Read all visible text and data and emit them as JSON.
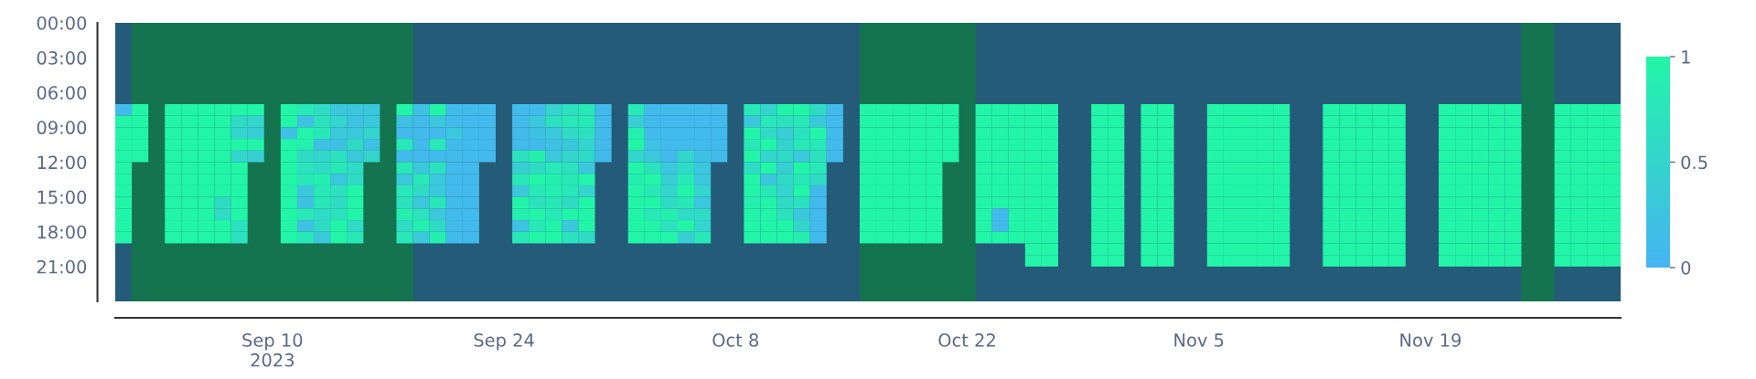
{
  "chart_data": {
    "type": "heatmap",
    "x": [
      "2023-09-01",
      "2023-09-02",
      "2023-09-03",
      "2023-09-04",
      "2023-09-05",
      "2023-09-06",
      "2023-09-07",
      "2023-09-08",
      "2023-09-09",
      "2023-09-10",
      "2023-09-11",
      "2023-09-12",
      "2023-09-13",
      "2023-09-14",
      "2023-09-15",
      "2023-09-16",
      "2023-09-17",
      "2023-09-18",
      "2023-09-19",
      "2023-09-20",
      "2023-09-21",
      "2023-09-22",
      "2023-09-23",
      "2023-09-24",
      "2023-09-25",
      "2023-09-26",
      "2023-09-27",
      "2023-09-28",
      "2023-09-29",
      "2023-09-30",
      "2023-10-01",
      "2023-10-02",
      "2023-10-03",
      "2023-10-04",
      "2023-10-05",
      "2023-10-06",
      "2023-10-07",
      "2023-10-08",
      "2023-10-09",
      "2023-10-10",
      "2023-10-11",
      "2023-10-12",
      "2023-10-13",
      "2023-10-14",
      "2023-10-15",
      "2023-10-16",
      "2023-10-17",
      "2023-10-18",
      "2023-10-19",
      "2023-10-20",
      "2023-10-21",
      "2023-10-22",
      "2023-10-23",
      "2023-10-24",
      "2023-10-25",
      "2023-10-26",
      "2023-10-27",
      "2023-10-28",
      "2023-10-29",
      "2023-10-30",
      "2023-10-31",
      "2023-11-01",
      "2023-11-02",
      "2023-11-03",
      "2023-11-04",
      "2023-11-05",
      "2023-11-06",
      "2023-11-07",
      "2023-11-08",
      "2023-11-09",
      "2023-11-10",
      "2023-11-11",
      "2023-11-12",
      "2023-11-13",
      "2023-11-14",
      "2023-11-15",
      "2023-11-16",
      "2023-11-17",
      "2023-11-18",
      "2023-11-19",
      "2023-11-20",
      "2023-11-21",
      "2023-11-22",
      "2023-11-23",
      "2023-11-24",
      "2023-11-25",
      "2023-11-26",
      "2023-11-27",
      "2023-11-28",
      "2023-11-29",
      "2023-11-30"
    ],
    "xlim": [
      "2023-08-31T12:00",
      "2023-11-30T12:00"
    ],
    "xticks": [
      {
        "value": "2023-09-10",
        "label": "Sep 10\n2023"
      },
      {
        "value": "2023-09-24",
        "label": "Sep 24"
      },
      {
        "value": "2023-10-08",
        "label": "Oct 8"
      },
      {
        "value": "2023-10-22",
        "label": "Oct 22"
      },
      {
        "value": "2023-11-05",
        "label": "Nov 5"
      },
      {
        "value": "2023-11-19",
        "label": "Nov 19"
      }
    ],
    "ylim": [
      24,
      0
    ],
    "y": [
      7.5,
      8.5,
      9.5,
      10.5,
      11.5,
      12.5,
      13.5,
      14.5,
      15.5,
      16.5,
      17.5,
      18.5,
      19.5,
      20.5
    ],
    "yticks": [
      {
        "value": 0,
        "label": "00:00"
      },
      {
        "value": 3,
        "label": "03:00"
      },
      {
        "value": 6,
        "label": "06:00"
      },
      {
        "value": 9,
        "label": "09:00"
      },
      {
        "value": 12,
        "label": "12:00"
      },
      {
        "value": 15,
        "label": "15:00"
      },
      {
        "value": 18,
        "label": "18:00"
      },
      {
        "value": 21,
        "label": "21:00"
      }
    ],
    "clim": [
      0,
      1
    ],
    "cticks": [
      0,
      0.5,
      1
    ],
    "bands": [
      {
        "axis": "x",
        "from": "2023-09-01T12:00",
        "to": "2023-09-18T12:00",
        "color": "#14744f"
      },
      {
        "axis": "x",
        "from": "2023-10-15T12:00",
        "to": "2023-10-22T12:00",
        "color": "#14744f"
      },
      {
        "axis": "x",
        "from": "2023-11-24T12:00",
        "to": "2023-11-26T12:00",
        "color": "#14744f"
      }
    ],
    "cells": [
      [
        0.1,
        1,
        null,
        1,
        1,
        1,
        1,
        1,
        1,
        null,
        1,
        0.8,
        0.6,
        0.3,
        0.3,
        0.3,
        null,
        1,
        0.2,
        1,
        0.1,
        0.1,
        0.1,
        null,
        0.1,
        0.1,
        0.5,
        0.7,
        0.8,
        0.1,
        null,
        0.8,
        0.1,
        0.1,
        0.1,
        0.1,
        0.1,
        null,
        0.8,
        0.5,
        1,
        1,
        0.6,
        0.1,
        null,
        1,
        1,
        1,
        1,
        1,
        1,
        null,
        1,
        1,
        1,
        1,
        1,
        null,
        null,
        1,
        1,
        null,
        1,
        1,
        null,
        null,
        1,
        1,
        1,
        1,
        1,
        null,
        null,
        1,
        1,
        1,
        1,
        1,
        null,
        null,
        1,
        1,
        1,
        1,
        1,
        null,
        null,
        1,
        1,
        1,
        1
      ],
      [
        1,
        1,
        null,
        1,
        1,
        1,
        1,
        0.6,
        0.5,
        null,
        1,
        0.2,
        0.7,
        0.5,
        0.2,
        0.3,
        null,
        0.2,
        0.1,
        0.3,
        0.1,
        0.1,
        0.1,
        null,
        0.1,
        0.3,
        0.7,
        0.8,
        0.8,
        0.1,
        null,
        0.4,
        0.1,
        0.1,
        0.1,
        0.1,
        0.1,
        null,
        0.3,
        0.8,
        0.7,
        0.8,
        0.3,
        0.1,
        null,
        1,
        1,
        1,
        1,
        1,
        1,
        null,
        1,
        1,
        1,
        1,
        1,
        null,
        null,
        1,
        1,
        null,
        1,
        1,
        null,
        null,
        1,
        1,
        1,
        1,
        1,
        null,
        null,
        1,
        1,
        1,
        1,
        1,
        null,
        null,
        1,
        1,
        1,
        1,
        1,
        null,
        null,
        1,
        1,
        1,
        1
      ],
      [
        1,
        1,
        null,
        1,
        1,
        1,
        1,
        0.5,
        0.4,
        null,
        0.2,
        1,
        0.8,
        0.3,
        0.3,
        0.5,
        null,
        0.1,
        0.1,
        0.1,
        0.3,
        0.1,
        0.1,
        null,
        0.1,
        0.2,
        0.3,
        0.6,
        0.7,
        0.1,
        null,
        0.9,
        0.1,
        0.1,
        0.1,
        0.1,
        0.1,
        null,
        1,
        0.6,
        0.4,
        0.7,
        1,
        0.1,
        null,
        1,
        1,
        1,
        1,
        1,
        1,
        null,
        1,
        1,
        1,
        1,
        1,
        null,
        null,
        1,
        1,
        null,
        1,
        1,
        null,
        null,
        1,
        1,
        1,
        1,
        1,
        null,
        null,
        1,
        1,
        1,
        1,
        1,
        null,
        null,
        1,
        1,
        1,
        1,
        1,
        null,
        null,
        1,
        1,
        1,
        1
      ],
      [
        1,
        1,
        null,
        1,
        1,
        1,
        1,
        1,
        1,
        null,
        1,
        0.9,
        0.2,
        0.2,
        0.6,
        0.2,
        null,
        0.8,
        0.1,
        0.8,
        0.1,
        0.1,
        0.1,
        null,
        0.1,
        0.1,
        0.2,
        0.3,
        0.5,
        0.1,
        null,
        1,
        0.2,
        0.1,
        0.1,
        0.1,
        0.1,
        null,
        0.8,
        1,
        0.5,
        0.8,
        0.8,
        0.1,
        null,
        1,
        1,
        1,
        1,
        1,
        1,
        null,
        1,
        1,
        1,
        1,
        1,
        null,
        null,
        1,
        1,
        null,
        1,
        1,
        null,
        null,
        1,
        1,
        1,
        1,
        1,
        null,
        null,
        1,
        1,
        1,
        1,
        1,
        null,
        null,
        1,
        1,
        1,
        1,
        1,
        null,
        null,
        1,
        1,
        1,
        1
      ],
      [
        1,
        1,
        null,
        1,
        1,
        1,
        1,
        0.5,
        0.4,
        null,
        1,
        0.6,
        0.5,
        0.7,
        0.3,
        0.5,
        null,
        0.1,
        0.1,
        0.1,
        0.1,
        0.1,
        0.1,
        null,
        0.7,
        0.9,
        0.3,
        0.5,
        0.6,
        0.1,
        null,
        0.5,
        0.3,
        0.1,
        0.5,
        0.2,
        0.1,
        null,
        1,
        0.5,
        0.6,
        0.3,
        0.7,
        0.1,
        null,
        1,
        1,
        1,
        1,
        1,
        1,
        null,
        1,
        1,
        1,
        1,
        1,
        null,
        null,
        1,
        1,
        null,
        1,
        1,
        null,
        null,
        1,
        1,
        1,
        1,
        1,
        null,
        null,
        1,
        1,
        1,
        1,
        1,
        null,
        null,
        1,
        1,
        1,
        1,
        1,
        null,
        null,
        1,
        1,
        1,
        1
      ],
      [
        1,
        null,
        null,
        1,
        1,
        1,
        1,
        1,
        null,
        null,
        1,
        0.7,
        0.6,
        0.8,
        0.6,
        null,
        null,
        0.8,
        0.3,
        0.7,
        0.1,
        0.1,
        null,
        null,
        0.4,
        0.6,
        0.8,
        0.7,
        0.3,
        null,
        null,
        1,
        0.7,
        0.3,
        0.6,
        0.3,
        null,
        null,
        0.6,
        1,
        0.4,
        1,
        0.8,
        null,
        null,
        1,
        1,
        1,
        1,
        1,
        null,
        null,
        1,
        1,
        1,
        1,
        1,
        null,
        null,
        1,
        1,
        null,
        1,
        1,
        null,
        null,
        1,
        1,
        1,
        1,
        1,
        null,
        null,
        1,
        1,
        1,
        1,
        1,
        null,
        null,
        1,
        1,
        1,
        1,
        1,
        null,
        null,
        1,
        1,
        1,
        1
      ],
      [
        1,
        null,
        null,
        1,
        1,
        1,
        1,
        1,
        null,
        null,
        1,
        0.8,
        0.9,
        0.3,
        0.6,
        null,
        null,
        0.3,
        0.8,
        0.3,
        0.1,
        0.1,
        null,
        null,
        0.8,
        1,
        0.9,
        0.8,
        1,
        null,
        null,
        0.9,
        1,
        0.4,
        0.8,
        0.3,
        null,
        null,
        1,
        0.3,
        0.6,
        0.8,
        0.6,
        null,
        null,
        1,
        1,
        1,
        1,
        1,
        null,
        null,
        1,
        1,
        1,
        1,
        1,
        null,
        null,
        1,
        1,
        null,
        1,
        1,
        null,
        null,
        1,
        1,
        1,
        1,
        1,
        null,
        null,
        1,
        1,
        1,
        1,
        1,
        null,
        null,
        1,
        1,
        1,
        1,
        1,
        null,
        null,
        1,
        1,
        1,
        1
      ],
      [
        1,
        null,
        null,
        1,
        1,
        1,
        1,
        1,
        null,
        null,
        1,
        0.3,
        0.8,
        0.7,
        1,
        null,
        null,
        0.8,
        0.6,
        0.3,
        0.1,
        0.1,
        null,
        null,
        0.3,
        0.8,
        0.9,
        0.8,
        0.5,
        null,
        null,
        1,
        0.8,
        0.5,
        1,
        0.5,
        null,
        null,
        1,
        0.8,
        0.5,
        1,
        0.1,
        null,
        null,
        1,
        1,
        1,
        1,
        1,
        null,
        null,
        1,
        1,
        1,
        1,
        1,
        null,
        null,
        1,
        1,
        null,
        1,
        1,
        null,
        null,
        1,
        1,
        1,
        1,
        1,
        null,
        null,
        1,
        1,
        1,
        1,
        1,
        null,
        null,
        1,
        1,
        1,
        1,
        1,
        null,
        null,
        1,
        1,
        1,
        1
      ],
      [
        1,
        null,
        null,
        1,
        1,
        1,
        0.6,
        1,
        null,
        null,
        1,
        0.2,
        0.8,
        0.6,
        1,
        null,
        null,
        0.7,
        0.3,
        0.8,
        0.1,
        0.1,
        null,
        null,
        1,
        0.7,
        0.8,
        0.6,
        1,
        null,
        null,
        1,
        1,
        0.6,
        0.8,
        0.3,
        null,
        null,
        0.9,
        1,
        0.6,
        0.7,
        0.1,
        null,
        null,
        1,
        1,
        1,
        1,
        1,
        null,
        null,
        1,
        1,
        1,
        1,
        1,
        null,
        null,
        1,
        1,
        null,
        1,
        1,
        null,
        null,
        1,
        1,
        1,
        1,
        1,
        null,
        null,
        1,
        1,
        1,
        1,
        1,
        null,
        null,
        1,
        1,
        1,
        1,
        1,
        null,
        null,
        1,
        1,
        1,
        1
      ],
      [
        1,
        null,
        null,
        1,
        1,
        1,
        0.6,
        1,
        null,
        null,
        1,
        0.8,
        0.6,
        0.7,
        1,
        null,
        null,
        0.9,
        0.7,
        0.3,
        0.1,
        0.1,
        null,
        null,
        0.9,
        1,
        0.8,
        1,
        1,
        null,
        null,
        1,
        0.8,
        0.9,
        0.6,
        0.6,
        null,
        null,
        1,
        1,
        0.7,
        0.3,
        0.1,
        null,
        null,
        1,
        1,
        1,
        1,
        1,
        null,
        null,
        1,
        0.1,
        1,
        1,
        1,
        null,
        null,
        1,
        1,
        null,
        1,
        1,
        null,
        null,
        1,
        1,
        1,
        1,
        1,
        null,
        null,
        1,
        1,
        1,
        1,
        1,
        null,
        null,
        1,
        1,
        1,
        1,
        1,
        null,
        null,
        1,
        1,
        1,
        1
      ],
      [
        1,
        null,
        null,
        1,
        1,
        1,
        1,
        0.7,
        null,
        null,
        1,
        0.2,
        0.6,
        1,
        0.6,
        null,
        null,
        0.6,
        0.9,
        0.6,
        0.1,
        0.1,
        null,
        null,
        0.2,
        0.8,
        1,
        0.3,
        1,
        null,
        null,
        1,
        1,
        0.7,
        1,
        0.5,
        null,
        null,
        1,
        1,
        1,
        0.5,
        0.1,
        null,
        null,
        1,
        1,
        1,
        1,
        1,
        null,
        null,
        1,
        0.1,
        1,
        1,
        1,
        null,
        null,
        1,
        1,
        null,
        1,
        1,
        null,
        null,
        1,
        1,
        1,
        1,
        1,
        null,
        null,
        1,
        1,
        1,
        1,
        1,
        null,
        null,
        1,
        1,
        1,
        1,
        1,
        null,
        null,
        1,
        1,
        1,
        1
      ],
      [
        1,
        null,
        null,
        1,
        1,
        1,
        1,
        0.7,
        null,
        null,
        1,
        0.8,
        0.3,
        1,
        0.8,
        null,
        null,
        0.8,
        0.3,
        0.9,
        0.1,
        0.1,
        null,
        null,
        0.8,
        1,
        1,
        0.7,
        0.6,
        null,
        null,
        1,
        1,
        1,
        0.4,
        0.8,
        null,
        null,
        1,
        1,
        1,
        0.9,
        0.1,
        null,
        null,
        1,
        1,
        1,
        1,
        1,
        null,
        null,
        1,
        1,
        1,
        1,
        1,
        null,
        null,
        1,
        1,
        null,
        1,
        1,
        null,
        null,
        1,
        1,
        1,
        1,
        1,
        null,
        null,
        1,
        1,
        1,
        1,
        1,
        null,
        null,
        1,
        1,
        1,
        1,
        1,
        null,
        null,
        1,
        1,
        1,
        1
      ],
      [
        null,
        null,
        null,
        null,
        null,
        null,
        null,
        null,
        null,
        null,
        null,
        null,
        null,
        null,
        null,
        null,
        null,
        null,
        null,
        null,
        null,
        null,
        null,
        null,
        null,
        null,
        null,
        null,
        null,
        null,
        null,
        null,
        null,
        null,
        null,
        null,
        null,
        null,
        null,
        null,
        null,
        null,
        null,
        null,
        null,
        null,
        null,
        null,
        null,
        null,
        null,
        null,
        null,
        null,
        null,
        1,
        1,
        null,
        null,
        1,
        1,
        null,
        1,
        1,
        null,
        null,
        1,
        1,
        1,
        1,
        1,
        null,
        null,
        1,
        1,
        1,
        1,
        1,
        null,
        null,
        1,
        1,
        1,
        1,
        1,
        null,
        null,
        1,
        1,
        1,
        1
      ],
      [
        null,
        null,
        null,
        null,
        null,
        null,
        null,
        null,
        null,
        null,
        null,
        null,
        null,
        null,
        null,
        null,
        null,
        null,
        null,
        null,
        null,
        null,
        null,
        null,
        null,
        null,
        null,
        null,
        null,
        null,
        null,
        null,
        null,
        null,
        null,
        null,
        null,
        null,
        null,
        null,
        null,
        null,
        null,
        null,
        null,
        null,
        null,
        null,
        null,
        null,
        null,
        null,
        null,
        null,
        null,
        1,
        1,
        null,
        null,
        1,
        1,
        null,
        1,
        1,
        null,
        null,
        1,
        1,
        1,
        1,
        1,
        null,
        null,
        1,
        1,
        1,
        1,
        1,
        null,
        null,
        1,
        1,
        1,
        1,
        1,
        null,
        null,
        1,
        1,
        1,
        1
      ]
    ]
  }
}
